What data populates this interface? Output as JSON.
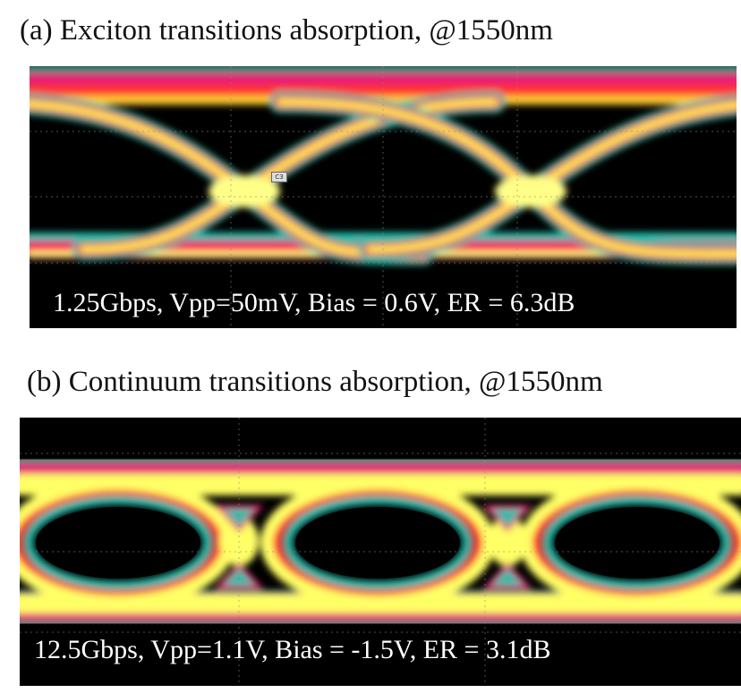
{
  "panel_a": {
    "heading": "(a)  Exciton transitions absorption, @1550nm",
    "caption": "1.25Gbps, Vpp=50mV, Bias = 0.6V, ER = 6.3dB",
    "marker": "C3"
  },
  "panel_b": {
    "heading": "(b)  Continuum transitions absorption, @1550nm",
    "caption": "12.5Gbps, Vpp=1.1V, Bias = -1.5V, ER = 3.1dB"
  },
  "colors": {
    "background": "#000000",
    "hot": "#ffff66",
    "warm": "#ff3333",
    "mid": "#e61e78",
    "cool": "#22bbaa"
  }
}
